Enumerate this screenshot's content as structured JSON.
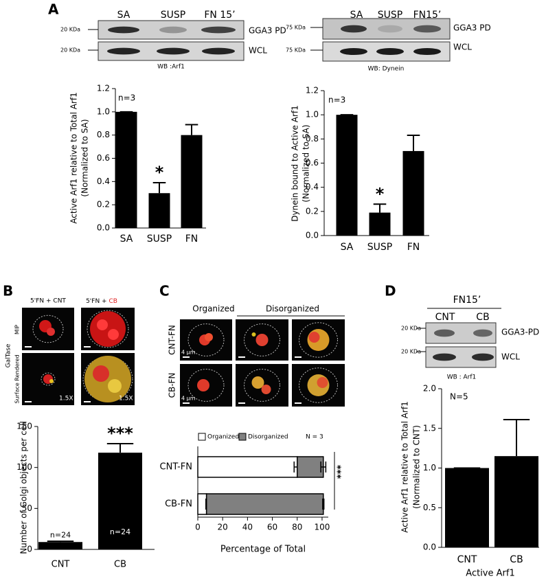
{
  "panels": {
    "a": {
      "letter": "A",
      "blot_left": {
        "lanes": [
          "SA",
          "SUSP",
          "FN 15’"
        ],
        "size_markers": [
          "20 KDa",
          "20 KDa"
        ],
        "rows": [
          "GGA3 PD",
          "WCL"
        ],
        "caption": "WB :Arf1"
      },
      "blot_right": {
        "lanes": [
          "SA",
          "SUSP",
          "FN15’"
        ],
        "size_markers": [
          "75 KDa",
          "75 KDa"
        ],
        "rows": [
          "GGA3 PD",
          "WCL"
        ],
        "caption": "WB: Dynein"
      }
    },
    "b": {
      "letter": "B",
      "columns": [
        "5'FN + CNT",
        "5'FN + "
      ],
      "columns_highlight": "CB",
      "stain": "GalTase",
      "rows": [
        "MIP",
        "Surface Rendered"
      ],
      "zoom_labels": [
        "1.5X",
        "1.5X"
      ]
    },
    "c": {
      "letter": "C",
      "groups": [
        "Organized",
        "Disorganized"
      ],
      "rows": [
        "CNT-FN",
        "CB-FN"
      ],
      "scale_labels": [
        "4 μm",
        "4 μm"
      ]
    },
    "d": {
      "letter": "D",
      "condition": "FN15’",
      "lanes": [
        "CNT",
        "CB"
      ],
      "size_markers": [
        "20 KDa",
        "20 KDa"
      ],
      "rows": [
        "GGA3-PD",
        "WCL"
      ],
      "caption": "WB : Arf1"
    }
  },
  "chart_data": [
    {
      "type": "bar",
      "categories": [
        "SA",
        "SUSP",
        "FN"
      ],
      "values": [
        1.0,
        0.3,
        0.8
      ],
      "errors": [
        0,
        0.09,
        0.09
      ],
      "color": "#000000",
      "ylim": [
        0,
        1.2
      ],
      "yticks": [
        {
          "value": 0,
          "label": "0.0"
        },
        0.2,
        0.4,
        0.6,
        0.8,
        {
          "value": 1,
          "label": "1.0"
        },
        1.2
      ],
      "ylabel": [
        "Active Arf1 relative to Total Arf1",
        "(Normalized to SA)"
      ],
      "n_label": "n=3",
      "significance_label": "*"
    },
    {
      "type": "bar",
      "categories": [
        "SA",
        "SUSP",
        "FN"
      ],
      "values": [
        1.0,
        0.19,
        0.7
      ],
      "errors": [
        0,
        0.07,
        0.13
      ],
      "color": "#000000",
      "ylim": [
        0,
        1.2
      ],
      "yticks": [
        {
          "value": 0,
          "label": "0.0"
        },
        0.2,
        0.4,
        0.6,
        0.8,
        {
          "value": 1,
          "label": "1.0"
        },
        1.2
      ],
      "ylabel": [
        "Dynein bound to Active Arf1",
        "(Normalized to SA)"
      ],
      "n_label": "n=3",
      "significance_label": "*"
    },
    {
      "type": "bar",
      "categories": [
        "CNT",
        "CB"
      ],
      "values": [
        9,
        118
      ],
      "errors": [
        1,
        11
      ],
      "color": "#000000",
      "ylim": [
        0,
        150
      ],
      "yticks": [
        0,
        50,
        100,
        150
      ],
      "ylabel": [
        "Number of Golgi objects per cell"
      ],
      "sample_sizes": [
        "n=24",
        "n=24"
      ],
      "significance_label": "***"
    },
    {
      "type": "barh",
      "stacked": true,
      "categories": [
        "CNT-FN",
        "CB-FN"
      ],
      "series": [
        {
          "name": "Organized",
          "color": "#ffffff",
          "values": [
            80,
            7
          ],
          "errors": [
            2.5,
            0.5
          ]
        },
        {
          "name": "Disorganized",
          "color": "#808080",
          "values": [
            21,
            94
          ],
          "errors": [
            2,
            0.5
          ]
        }
      ],
      "xlim": [
        0,
        105
      ],
      "xticks": [
        0,
        20,
        40,
        60,
        80,
        100
      ],
      "xlabel": "Percentage of Total",
      "n_label": "N = 3",
      "significance_label": "***",
      "legend": "top-left"
    },
    {
      "type": "bar",
      "categories": [
        "CNT",
        "CB"
      ],
      "values": [
        1.0,
        1.15
      ],
      "errors": [
        0,
        0.46
      ],
      "color": "#000000",
      "ylim": [
        0,
        2.0
      ],
      "yticks": [
        {
          "value": 0,
          "label": "0.0"
        },
        {
          "value": 0.5,
          "label": "0.5"
        },
        {
          "value": 1,
          "label": "1.0"
        },
        {
          "value": 1.5,
          "label": "1.5"
        },
        {
          "value": 2,
          "label": "2.0"
        }
      ],
      "ylabel": [
        "Active Arf1 relative to Total Arf1",
        "(Normalized to CNT)"
      ],
      "xlabel": "Active Arf1",
      "n_label": "N=5"
    }
  ]
}
